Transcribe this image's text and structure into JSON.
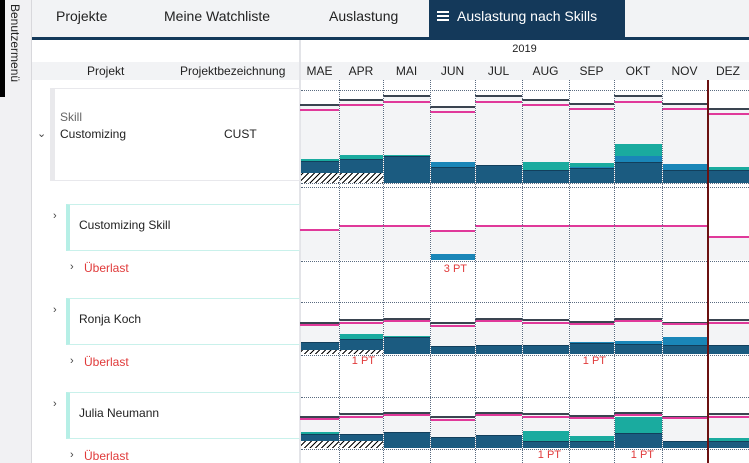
{
  "sidebar": {
    "label": "Benutzermenü"
  },
  "tabs": [
    {
      "label": "Projekte"
    },
    {
      "label": "Meine Watchliste"
    },
    {
      "label": "Auslastung"
    },
    {
      "label": "Auslastung nach Skills",
      "active": true,
      "close": "×"
    }
  ],
  "header": {
    "year": "2019",
    "col_project": "Projekt",
    "col_desc": "Projektbezeichnung",
    "months": [
      "MAE",
      "APR",
      "MAI",
      "JUN",
      "JUL",
      "AUG",
      "SEP",
      "OKT",
      "NOV",
      "DEZ"
    ]
  },
  "skill": {
    "type_label": "Skill",
    "name": "Customizing",
    "code": "CUST"
  },
  "rows": [
    {
      "name": "Customizing Skill",
      "overload_label": "Überlast"
    },
    {
      "name": "Ronja Koch",
      "overload_label": "Überlast"
    },
    {
      "name": "Julia Neumann",
      "overload_label": "Überlast"
    }
  ],
  "colors": {
    "dark": "#1b5b80",
    "blue": "#1a86b8",
    "teal": "#1aab9f",
    "capacity": "#3a4450",
    "available": "#e0399a",
    "overload": "#e03a3a",
    "nav": "#14395a"
  },
  "chart_data": {
    "type": "stacked-bar-step",
    "unit": "PT",
    "series_rows": [
      {
        "row": "Customizing",
        "capacity": [
          79,
          84,
          88,
          77,
          88,
          84,
          80,
          88,
          80,
          75
        ],
        "available": [
          74,
          79,
          82,
          72,
          82,
          79,
          75,
          82,
          75,
          70
        ],
        "dark": [
          22,
          24,
          27,
          16,
          18,
          13,
          15,
          21,
          13,
          13
        ],
        "blue": [
          0,
          0,
          0,
          5,
          0,
          0,
          1,
          6,
          6,
          0
        ],
        "teal": [
          2,
          4,
          1,
          0,
          0,
          8,
          4,
          12,
          0,
          3
        ],
        "hatched": [
          10,
          10,
          0,
          0,
          0,
          0,
          0,
          0,
          0,
          0
        ]
      },
      {
        "row": "Customizing Skill",
        "capacity": null,
        "available": [
          31,
          35,
          35,
          30,
          35,
          35,
          35,
          35,
          35,
          24
        ],
        "dark": [
          0,
          0,
          0,
          0,
          0,
          0,
          0,
          0,
          0,
          0
        ],
        "blue": [
          0,
          0,
          0,
          6,
          0,
          0,
          0,
          0,
          0,
          0
        ],
        "teal": [
          0,
          0,
          0,
          0,
          0,
          0,
          0,
          0,
          0,
          0
        ],
        "hatched": [
          0,
          0,
          0,
          0,
          0,
          0,
          0,
          0,
          0,
          0
        ],
        "overload": [
          "",
          "",
          "",
          "3 PT",
          "",
          "",
          "",
          "",
          "",
          ""
        ]
      },
      {
        "row": "Ronja Koch",
        "capacity": [
          32,
          35,
          36,
          32,
          36,
          35,
          33,
          36,
          32,
          35
        ],
        "available": [
          30,
          32,
          34,
          29,
          34,
          32,
          31,
          34,
          31,
          32
        ],
        "dark": [
          12,
          15,
          17,
          8,
          9,
          9,
          11,
          10,
          9,
          9
        ],
        "blue": [
          0,
          0,
          0,
          0,
          0,
          0,
          1,
          3,
          8,
          0
        ],
        "teal": [
          0,
          5,
          1,
          0,
          0,
          0,
          0,
          0,
          0,
          0
        ],
        "hatched": [
          4,
          4,
          0,
          0,
          0,
          0,
          0,
          0,
          0,
          0
        ],
        "overload": [
          "",
          "1 PT",
          "",
          "",
          "",
          "",
          "1 PT",
          "",
          "",
          ""
        ]
      },
      {
        "row": "Julia Neumann",
        "capacity": [
          32,
          35,
          36,
          32,
          36,
          35,
          33,
          36,
          32,
          35
        ],
        "available": [
          30,
          32,
          34,
          29,
          34,
          32,
          31,
          34,
          31,
          32
        ],
        "dark": [
          14,
          14,
          16,
          11,
          13,
          7,
          7,
          15,
          7,
          7
        ],
        "blue": [
          0,
          0,
          0,
          0,
          0,
          0,
          0,
          0,
          0,
          0
        ],
        "teal": [
          2,
          0,
          0,
          0,
          0,
          10,
          5,
          16,
          0,
          3
        ],
        "hatched": [
          7,
          7,
          0,
          0,
          0,
          0,
          0,
          0,
          0,
          0
        ],
        "overload": [
          "",
          "",
          "",
          "",
          "",
          "1 PT",
          "",
          "1 PT",
          "",
          ""
        ]
      }
    ]
  }
}
